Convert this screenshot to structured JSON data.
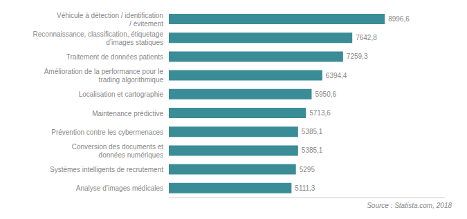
{
  "chart_data": {
    "type": "bar",
    "orientation": "horizontal",
    "categories": [
      "Analyse d’images médicales",
      "Systèmes intelligents de recrutement",
      "Conversion des documents et\ndonnées numériques",
      "Prévention contre les cybermenaces",
      "Maintenance prédictive",
      "Localisation et cartographie",
      "Amélioration de la performance pour le\ntrading algorithmique",
      "Traitement de données patients",
      "Reconnaissance, classification, étiquetage\nd’images statiques",
      "Véhicule à détection / identification\n/ évitement"
    ],
    "values": [
      5111.3,
      5295,
      5385.1,
      5385.1,
      5713.6,
      5950.6,
      6394.4,
      7259.3,
      7642.8,
      8996.6
    ],
    "value_labels": [
      "5111,3",
      "5295",
      "5385,1",
      "5385,1",
      "5713,6",
      "5950,6",
      "6394,4",
      "7259,3",
      "7642,8",
      "8996,6"
    ],
    "color": "#3a8c96",
    "xlim": [
      0,
      11500
    ],
    "data_labels": true,
    "tick_labels": "y",
    "annotations": [
      "Source : Statista.com, 2018"
    ]
  }
}
